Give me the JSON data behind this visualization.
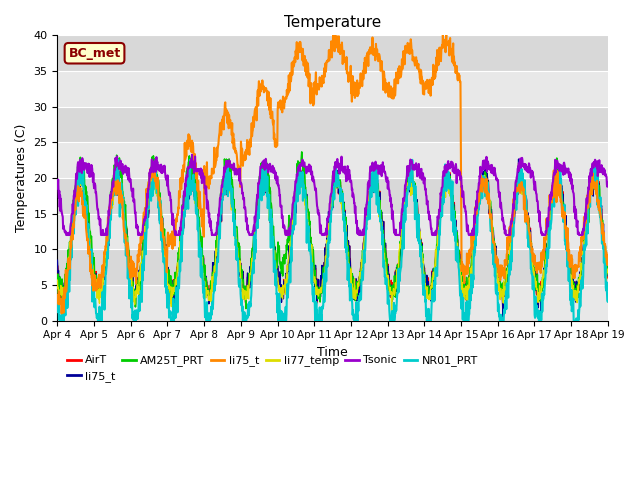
{
  "title": "Temperature",
  "xlabel": "Time",
  "ylabel": "Temperatures (C)",
  "ylim": [
    0,
    40
  ],
  "xlim": [
    0,
    15
  ],
  "x_tick_labels": [
    "Apr 4",
    "Apr 5",
    "Apr 6",
    "Apr 7",
    "Apr 8",
    "Apr 9",
    "Apr 10",
    "Apr 11",
    "Apr 12",
    "Apr 13",
    "Apr 14",
    "Apr 15",
    "Apr 16",
    "Apr 17",
    "Apr 18",
    "Apr 19"
  ],
  "annotation_text": "BC_met",
  "annotation_fg": "#8B0000",
  "annotation_bg": "#FFFFCC",
  "annotation_border": "#8B0000",
  "bg_color": "#DCDCDC",
  "fig_bg": "#FFFFFF",
  "band_colors": [
    "#E8E8E8",
    "#D0D0D0"
  ],
  "grid_color": "#FFFFFF",
  "series": [
    {
      "name": "AirT",
      "color": "#FF0000",
      "lw": 1.0,
      "zorder": 3
    },
    {
      "name": "li75_t",
      "color": "#000099",
      "lw": 1.0,
      "zorder": 3
    },
    {
      "name": "AM25T_PRT",
      "color": "#00CC00",
      "lw": 1.2,
      "zorder": 3
    },
    {
      "name": "li75_t",
      "color": "#FF8800",
      "lw": 1.5,
      "zorder": 4
    },
    {
      "name": "li77_temp",
      "color": "#DDDD00",
      "lw": 1.0,
      "zorder": 3
    },
    {
      "name": "Tsonic",
      "color": "#9900CC",
      "lw": 1.5,
      "zorder": 4
    },
    {
      "name": "NR01_PRT",
      "color": "#00CCCC",
      "lw": 1.5,
      "zorder": 3
    }
  ],
  "legend_ncol": 6,
  "title_fontsize": 11,
  "axis_fontsize": 9,
  "tick_fontsize": 7.5,
  "legend_fontsize": 8
}
